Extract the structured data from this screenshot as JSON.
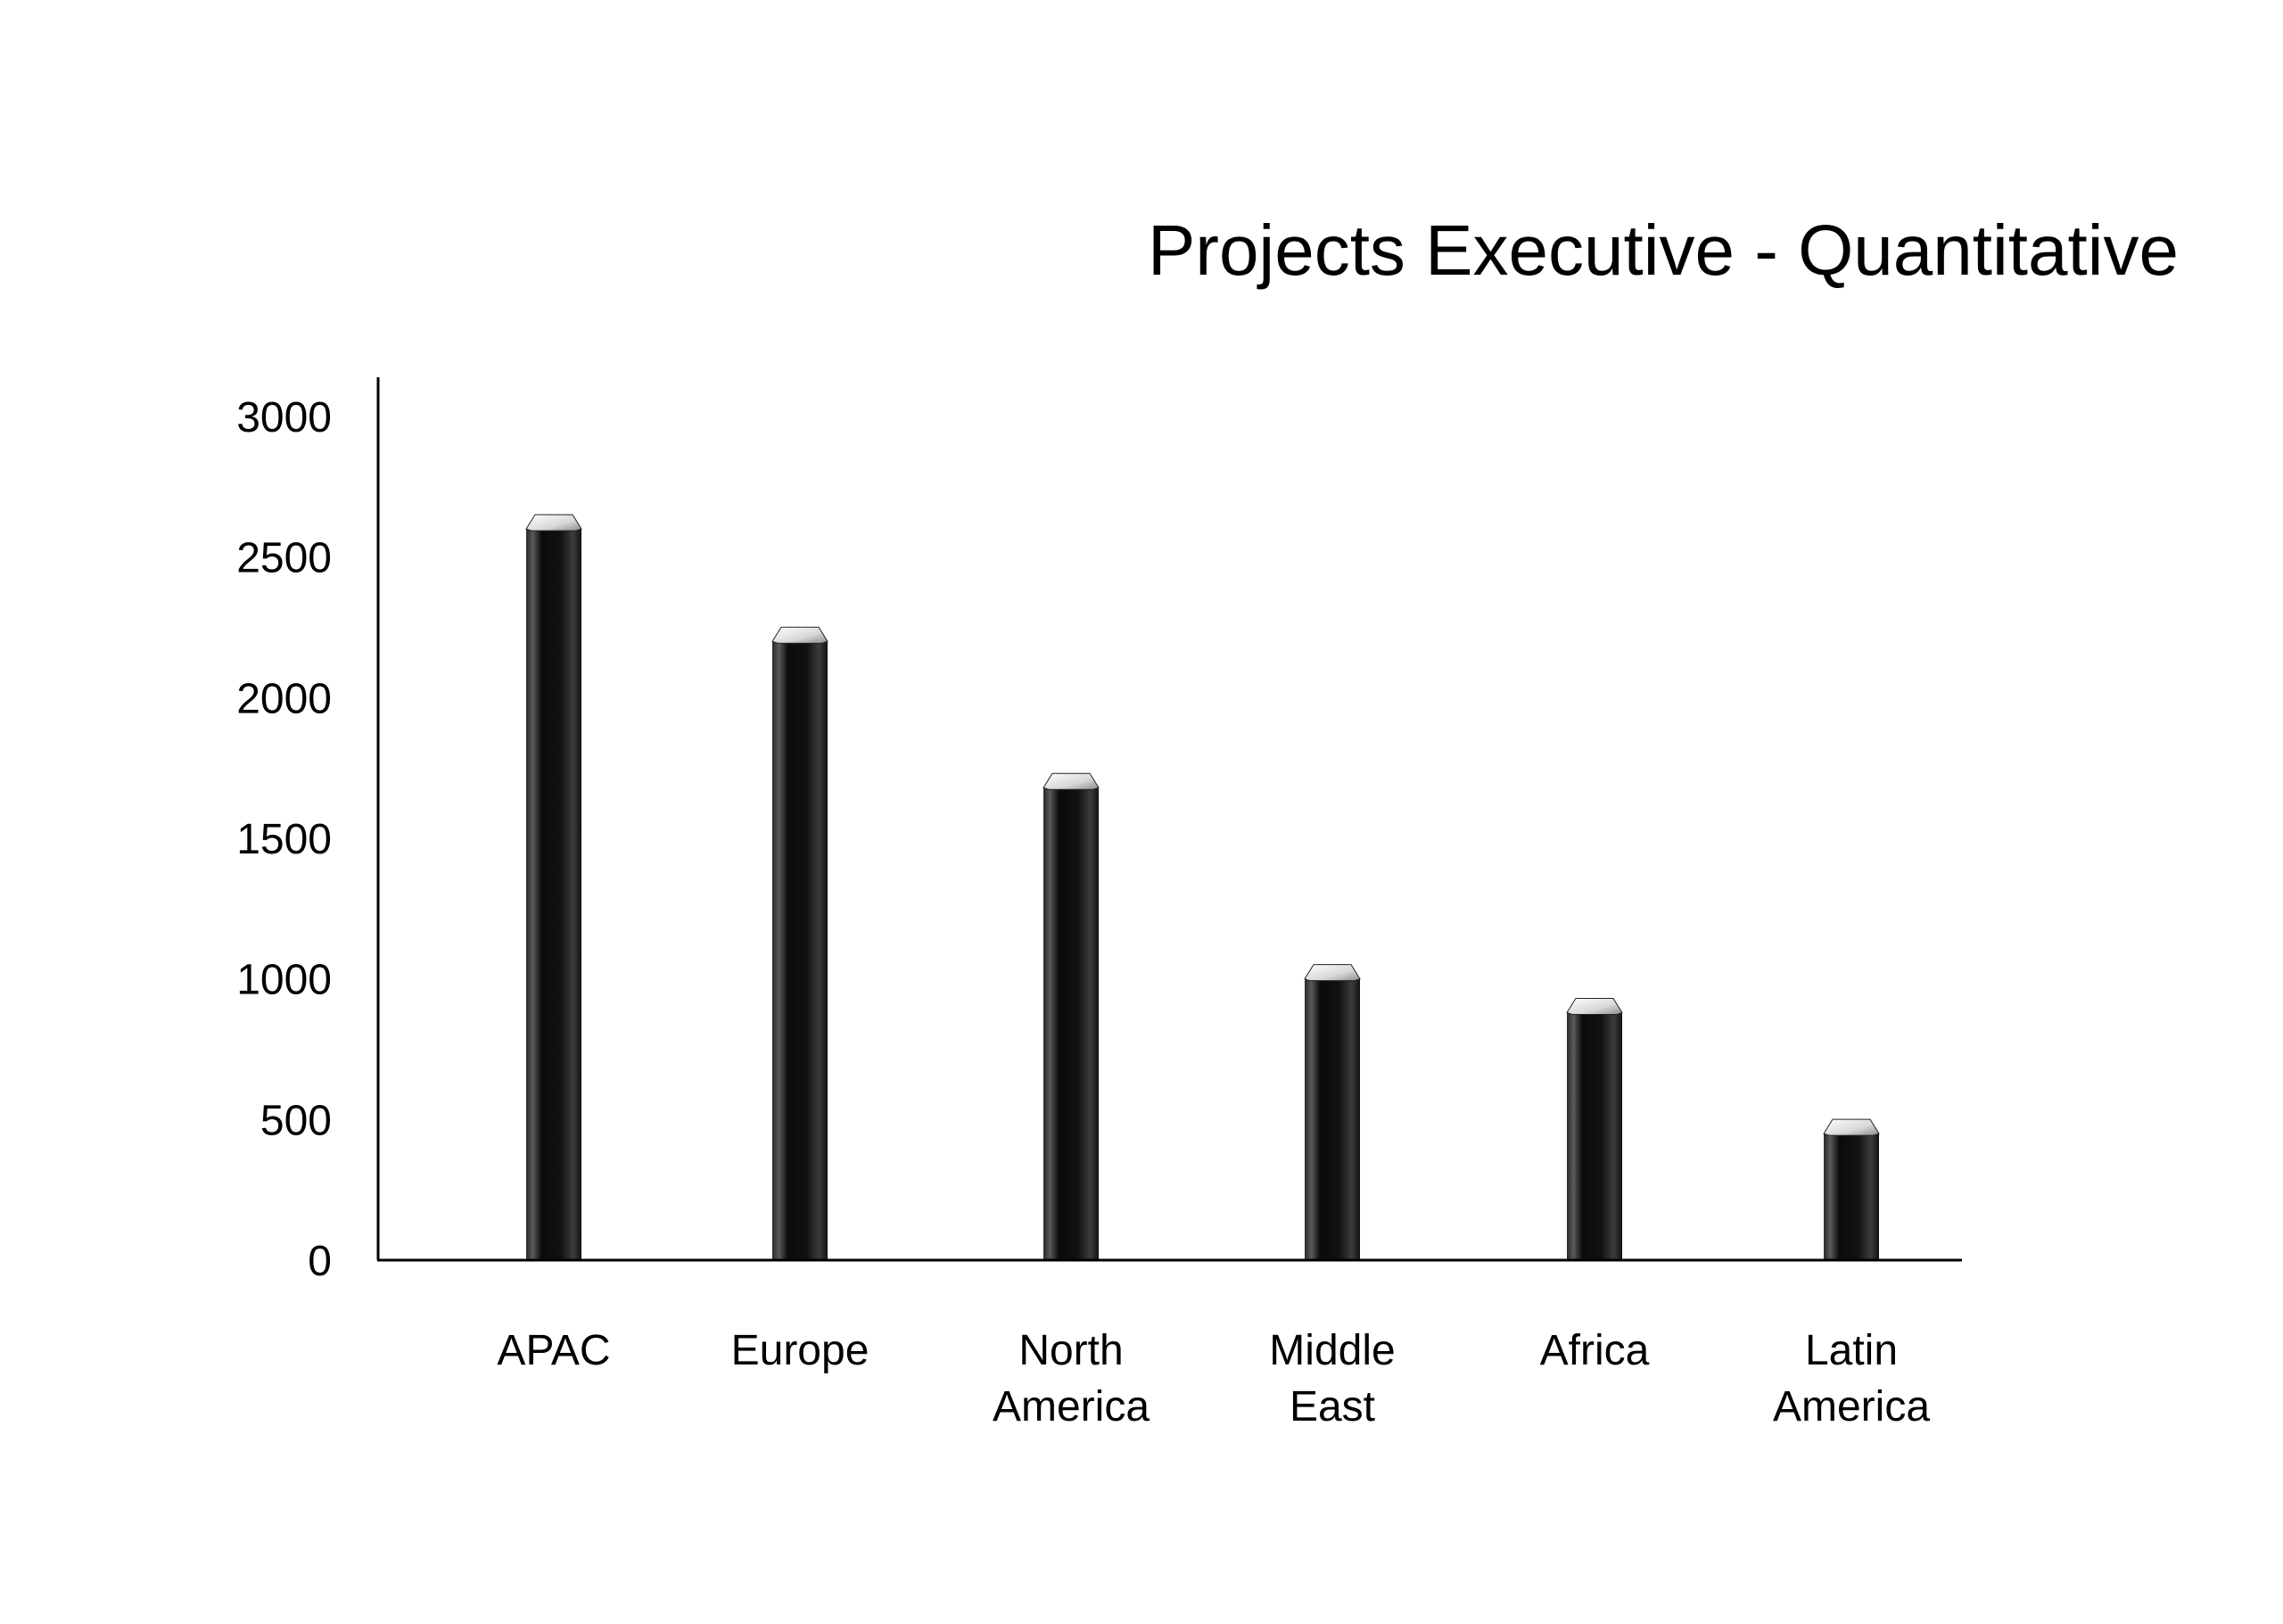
{
  "chart_data": {
    "type": "bar",
    "title": "Projects Executive - Quantitative",
    "xlabel": "",
    "ylabel": "",
    "ylim": [
      0,
      3000
    ],
    "yticks": [
      "0",
      "500",
      "1000",
      "1500",
      "2000",
      "2500",
      "3000"
    ],
    "categories": [
      [
        "APAC"
      ],
      [
        "Europe"
      ],
      [
        "North",
        "America"
      ],
      [
        "Middle",
        "East"
      ],
      [
        "Africa"
      ],
      [
        "Latin",
        "America"
      ]
    ],
    "values": [
      2600,
      2200,
      1680,
      1000,
      880,
      450
    ],
    "grid": false,
    "legend": "none",
    "colors": {
      "bar": "#111111",
      "bar_highlight": "#5a5a5a",
      "cap": "#f2f2f2",
      "axis": "#000000"
    }
  }
}
